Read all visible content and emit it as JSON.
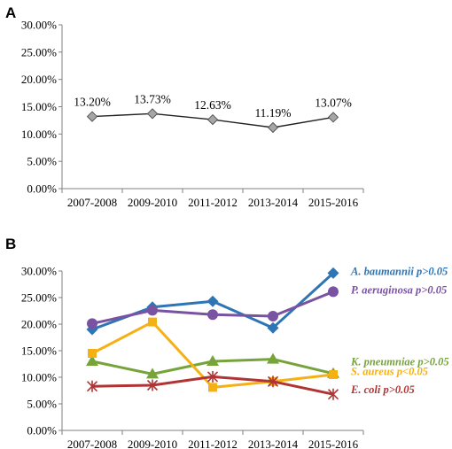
{
  "chart_data": [
    {
      "panel": "A",
      "type": "line",
      "categories": [
        "2007-2008",
        "2009-2010",
        "2011-2012",
        "2013-2014",
        "2015-2016"
      ],
      "values": [
        13.2,
        13.73,
        12.63,
        11.19,
        13.07
      ],
      "data_labels": [
        "13.20%",
        "13.73%",
        "12.63%",
        "11.19%",
        "13.07%"
      ],
      "yticks": [
        "0.00%",
        "5.00%",
        "10.00%",
        "15.00%",
        "20.00%",
        "25.00%",
        "30.00%"
      ],
      "ylim": [
        0,
        30
      ],
      "marker": "diamond",
      "line_color": "#222222",
      "marker_color": "#a6a6a6"
    },
    {
      "panel": "B",
      "type": "line",
      "categories": [
        "2007-2008",
        "2009-2010",
        "2011-2012",
        "2013-2014",
        "2015-2016"
      ],
      "yticks": [
        "0.00%",
        "5.00%",
        "10.00%",
        "15.00%",
        "20.00%",
        "25.00%",
        "30.00%"
      ],
      "ylim": [
        0,
        30
      ],
      "series": [
        {
          "name": "A. baumannii",
          "label": "A. baumannii p>0.05",
          "values": [
            19.0,
            23.2,
            24.3,
            19.3,
            29.6
          ],
          "color": "#2e75b6",
          "marker": "diamond"
        },
        {
          "name": "P. aeruginosa",
          "label": "P. aeruginosa p>0.05",
          "values": [
            20.1,
            22.6,
            21.8,
            21.5,
            26.1
          ],
          "color": "#7a52a2",
          "marker": "circle"
        },
        {
          "name": "K. pneumniae",
          "label": "K. pneumniae p>0.05",
          "values": [
            13.0,
            10.6,
            13.0,
            13.4,
            10.7
          ],
          "color": "#77a33b",
          "marker": "triangle"
        },
        {
          "name": "S. aureus",
          "label": "S. aureus p<0.05",
          "values": [
            14.5,
            20.4,
            8.1,
            9.2,
            10.5
          ],
          "color": "#f5b114",
          "marker": "square"
        },
        {
          "name": "E. coli",
          "label": "E. coli p>0.05",
          "values": [
            8.3,
            8.5,
            10.1,
            9.2,
            6.8
          ],
          "color": "#b03434",
          "marker": "star"
        }
      ]
    }
  ]
}
